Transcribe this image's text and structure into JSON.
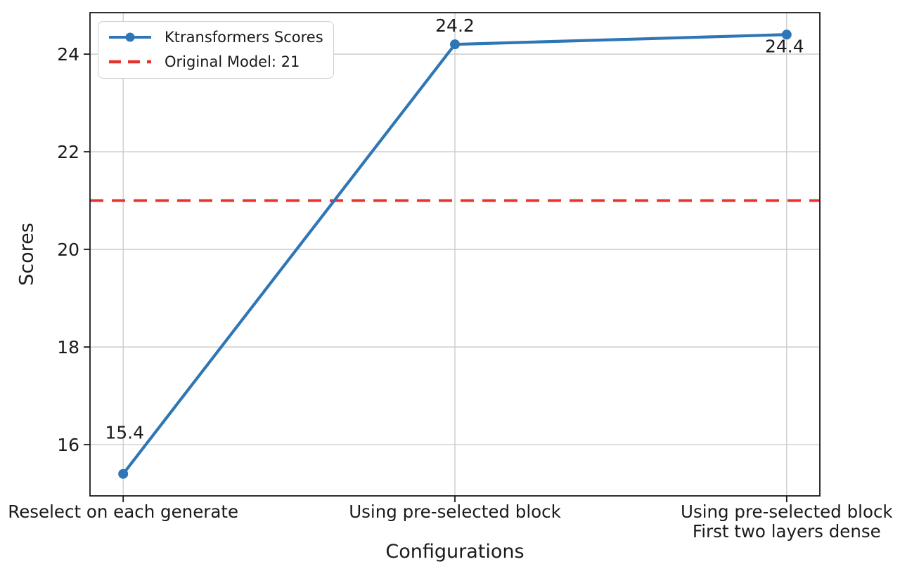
{
  "chart_data": {
    "type": "line",
    "title": "",
    "xlabel": "Configurations",
    "ylabel": "Scores",
    "categories": [
      "Reselect on each generate",
      "Using pre-selected block",
      "Using pre-selected block\nFirst two layers dense"
    ],
    "series": [
      {
        "name": "Ktransformers Scores",
        "values": [
          15.4,
          24.2,
          24.4
        ],
        "color": "#2f76b6",
        "marker": "circle"
      }
    ],
    "data_labels": [
      "15.4",
      "24.2",
      "24.4"
    ],
    "ref_line": {
      "label": "Original Model: 21",
      "value": 21,
      "color": "#e5342b",
      "style": "dashed"
    },
    "yticks": [
      16,
      18,
      20,
      22,
      24
    ],
    "ylim": [
      14.95,
      24.85
    ],
    "xlim": [
      -0.1,
      2.1
    ],
    "grid": true,
    "grid_color": "#c9c9c9",
    "spine_color": "#1a1a1a",
    "legend_position": "upper-left"
  }
}
